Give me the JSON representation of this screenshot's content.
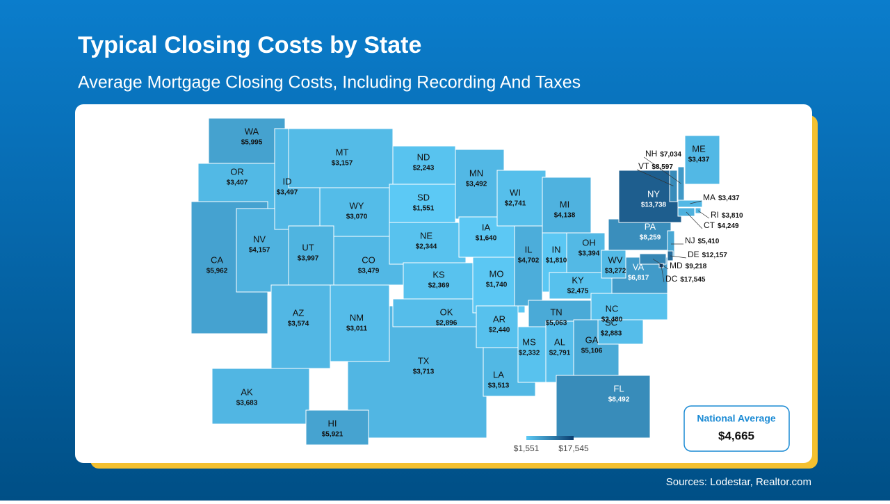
{
  "header": {
    "title": "Typical Closing Costs by State",
    "subtitle": "Average Mortgage Closing Costs, Including Recording And Taxes"
  },
  "map": {
    "categories": [
      "WA",
      "OR",
      "TX",
      "CA",
      "NV",
      "ID",
      "MT",
      "WY",
      "UT",
      "CO",
      "AZ",
      "NM",
      "ND",
      "SD",
      "NE",
      "KS",
      "OK",
      "MN",
      "IA",
      "MO",
      "AR",
      "LA",
      "WI",
      "IL",
      "MI",
      "IN",
      "OH",
      "KY",
      "TN",
      "MS",
      "AL",
      "GA",
      "FL",
      "SC",
      "NC",
      "VA",
      "WV",
      "PA",
      "NY",
      "ME",
      "NH",
      "VT",
      "MA",
      "RI",
      "CT",
      "NJ",
      "DE",
      "MD",
      "DC",
      "AK",
      "HI"
    ],
    "values": [
      5995,
      3407,
      3713,
      5962,
      4157,
      3497,
      3157,
      3070,
      3997,
      3479,
      3574,
      3011,
      2243,
      1551,
      2344,
      2369,
      2896,
      3492,
      1640,
      1740,
      2440,
      3513,
      2741,
      4702,
      4138,
      1810,
      3394,
      2475,
      5063,
      2332,
      2791,
      5106,
      8492,
      2883,
      2480,
      6817,
      3272,
      8259,
      13738,
      3437,
      7034,
      8597,
      3437,
      3810,
      4249,
      5410,
      12157,
      9218,
      17545,
      3683,
      5921
    ],
    "value_labels": [
      "$5,995",
      "$3,407",
      "$3,713",
      "$5,962",
      "$4,157",
      "$3,497",
      "$3,157",
      "$3,070",
      "$3,997",
      "$3,479",
      "$3,574",
      "$3,011",
      "$2,243",
      "$1,551",
      "$2,344",
      "$2,369",
      "$2,896",
      "$3,492",
      "$1,640",
      "$1,740",
      "$2,440",
      "$3,513",
      "$2,741",
      "$4,702",
      "$4,138",
      "$1,810",
      "$3,394",
      "$2,475",
      "$5,063",
      "$2,332",
      "$2,791",
      "$5,106",
      "$8,492",
      "$2,883",
      "$2,480",
      "$6,817",
      "$3,272",
      "$8,259",
      "$13,738",
      "$3,437",
      "$7,034",
      "$8,597",
      "$3,437",
      "$3,810",
      "$4,249",
      "$5,410",
      "$12,157",
      "$9,218",
      "$17,545",
      "$3,683",
      "$5,921"
    ],
    "color_range": [
      "#5cc9f5",
      "#0a3d6e"
    ],
    "scale": [
      {
        "value": 1551,
        "label": "$1,551"
      },
      {
        "value": 17545,
        "label": "$17,545"
      }
    ]
  },
  "national_average": {
    "label": "National Average",
    "value": 4665,
    "value_label": "$4,665"
  },
  "source": "Sources: Lodestar, Realtor.com"
}
